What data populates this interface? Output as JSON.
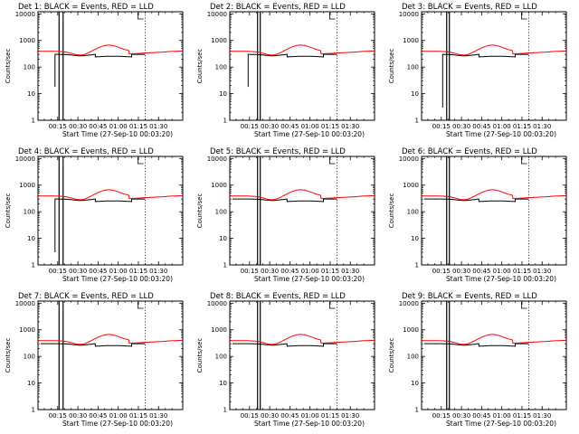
{
  "chart_data": {
    "type": "line",
    "ylabel": "Counts/sec",
    "yscale": "log",
    "ylim": [
      1,
      12000
    ],
    "y_ticks": [
      {
        "v": 1,
        "label": "1"
      },
      {
        "v": 10,
        "label": "10"
      },
      {
        "v": 100,
        "label": "100"
      },
      {
        "v": 1000,
        "label": "1000"
      },
      {
        "v": 10000,
        "label": "10000"
      }
    ],
    "xlim_minutes": [
      0.33,
      108
    ],
    "x_ticks": [
      {
        "v": 15,
        "label": "00:15"
      },
      {
        "v": 30,
        "label": "00:30"
      },
      {
        "v": 45,
        "label": "00:45"
      },
      {
        "v": 60,
        "label": "01:00"
      },
      {
        "v": 75,
        "label": "01:15"
      },
      {
        "v": 90,
        "label": "01:30"
      }
    ],
    "event_line_minutes": 80,
    "series_colors": {
      "events": "#000000",
      "lld": "#ff0000"
    },
    "panels": [
      {
        "title": "Det 1: BLACK = Events, RED = LLD",
        "xlabel": "Start Time (27-Sep-10 00:03:20)",
        "glitch_start": 13,
        "glitch_end": 21,
        "dip_min": 18,
        "bars": [
          16,
          19
        ]
      },
      {
        "title": "Det 2: BLACK = Events, RED = LLD",
        "xlabel": "Start Time (27-Sep-10 00:03:20)",
        "glitch_start": 14,
        "glitch_end": 22,
        "dip_min": 18,
        "bars": [
          21,
          23
        ]
      },
      {
        "title": "Det 3: BLACK = Events, RED = LLD",
        "xlabel": "Start Time (27-Sep-10 00:03:20)",
        "glitch_start": 16,
        "glitch_end": 23,
        "dip_min": 3,
        "bars": [
          19,
          21
        ]
      },
      {
        "title": "Det 4: BLACK = Events, RED = LLD",
        "xlabel": "Start Time (27-Sep-10 00:03:20)",
        "glitch_start": 13,
        "glitch_end": 21,
        "dip_min": 3,
        "bars": [
          16,
          19
        ]
      },
      {
        "title": "Det 5: BLACK = Events, RED = LLD",
        "xlabel": "Start Time (27-Sep-10 00:03:20)",
        "glitch_start": 17,
        "glitch_end": 22,
        "dip_min": null,
        "bars": [
          21,
          23
        ]
      },
      {
        "title": "Det 6: BLACK = Events, RED = LLD",
        "xlabel": "Start Time (27-Sep-10 00:03:20)",
        "glitch_start": 16,
        "glitch_end": 23,
        "dip_min": null,
        "bars": [
          19,
          21
        ]
      },
      {
        "title": "Det 7: BLACK = Events, RED = LLD",
        "xlabel": "Start Time (27-Sep-10 00:03:20)",
        "glitch_start": 13,
        "glitch_end": 21,
        "dip_min": null,
        "bars": [
          16,
          19
        ]
      },
      {
        "title": "Det 8: BLACK = Events, RED = LLD",
        "xlabel": "Start Time (27-Sep-10 00:03:20)",
        "glitch_start": 17,
        "glitch_end": 22,
        "dip_min": null,
        "bars": [
          21,
          23
        ]
      },
      {
        "title": "Det 9: BLACK = Events, RED = LLD",
        "xlabel": "Start Time (27-Sep-10 00:03:20)",
        "glitch_start": 16,
        "glitch_end": 23,
        "dip_min": null,
        "bars": [
          19,
          21
        ]
      }
    ]
  }
}
